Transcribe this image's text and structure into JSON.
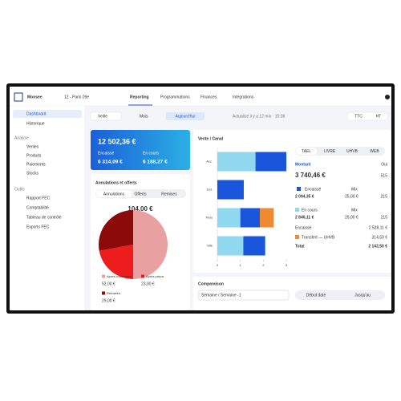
{
  "nav": {
    "brand": "Monsee",
    "venue": "12 - Paris 09e",
    "tabs": [
      "Reporting",
      "Programmations",
      "Finances",
      "Intégrations"
    ]
  },
  "sidebar": {
    "items": [
      "Dashboard",
      "Historique"
    ],
    "sections": [
      {
        "title": "Analyse",
        "items": [
          "Ventes",
          "Produits",
          "Paiements",
          "Stocks"
        ]
      },
      {
        "title": "Outils",
        "items": [
          "Rapport FEC",
          "Comptabilité",
          "Tableau de contrôle",
          "Exports FEC"
        ]
      }
    ]
  },
  "filters": {
    "options": [
      "Veille",
      "Mois",
      "Aujourd'hui"
    ],
    "status": "Actualisé il y a 12 min · 15:08",
    "modes": [
      "TTC",
      "HT"
    ]
  },
  "summary": {
    "total": "12 502,36 €",
    "paid_label": "Encaissé",
    "paid": "6 314,09 €",
    "pending_label": "En cours",
    "pending": "6 188,27 €"
  },
  "cancellations": {
    "title": "Annulations et offerts",
    "tabs": [
      "Annulations",
      "Offerts",
      "Remises"
    ],
    "total": "104,00 €"
  },
  "chart_data": [
    {
      "type": "pie",
      "categories": [
        "Après commande",
        "Après prépa.",
        "Refusées"
      ],
      "values": [
        52,
        23,
        29
      ],
      "value_labels": [
        "52,00 €",
        "23,00 €",
        "29,00 €"
      ],
      "colors": [
        "#e8a0a0",
        "#ee1c1c",
        "#8b0a0a"
      ]
    },
    {
      "type": "bar",
      "orientation": "horizontal",
      "stacked": true,
      "title": "Vente / Canal",
      "categories": [
        "Acc.",
        "Ext.",
        "Tiers",
        "Site"
      ],
      "series": [
        {
          "color": "#8fd8f0",
          "values": [
            1.66,
            null,
            1.0,
            1.13
          ]
        },
        {
          "color": "#1a56db",
          "values": [
            1.34,
            1.15,
            0.85,
            0.95
          ]
        },
        {
          "color": "#f08a30",
          "values": [
            null,
            null,
            0.6,
            null
          ]
        }
      ],
      "xlim": [
        0,
        3
      ],
      "xticks": [
        0,
        1,
        2,
        3
      ]
    }
  ],
  "detail": {
    "tabs": [
      "TAEL",
      "LIVRE",
      "UHVB",
      "WEB"
    ],
    "amount_label": "Montant",
    "amount_link": "Oui",
    "amount": "3 740,46 €",
    "count": "515",
    "rows": [
      {
        "label": "Encaissé",
        "mode": "Mix",
        "amount": "2 094,35 €",
        "sub": "25,00 €",
        "count": "215"
      },
      {
        "label": "En cours",
        "mode": "Mix",
        "amount": "2 846,11 €",
        "sub": "25,00 €",
        "count": "215"
      }
    ],
    "totals": [
      [
        "Encaissé",
        "2 528,11 €"
      ],
      [
        "Transfert — UHVB",
        "314,50 €"
      ],
      [
        "Total",
        "2 142,50 €"
      ]
    ]
  },
  "comparison": {
    "title": "Comparaison",
    "period": "Semaine / Semaine -1",
    "buttons": [
      "Début date",
      "Jusqu'au"
    ]
  }
}
